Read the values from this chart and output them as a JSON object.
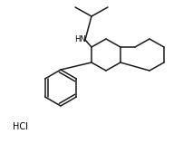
{
  "background": "#ffffff",
  "line_color": "#1a1a1a",
  "line_width": 1.1,
  "text_color": "#000000",
  "HN_label": "HN",
  "HCl_label": "HCl",
  "figsize": [
    2.03,
    1.69
  ],
  "dpi": 100,
  "font_size_hn": 6.0,
  "font_size_hcl": 7.0
}
